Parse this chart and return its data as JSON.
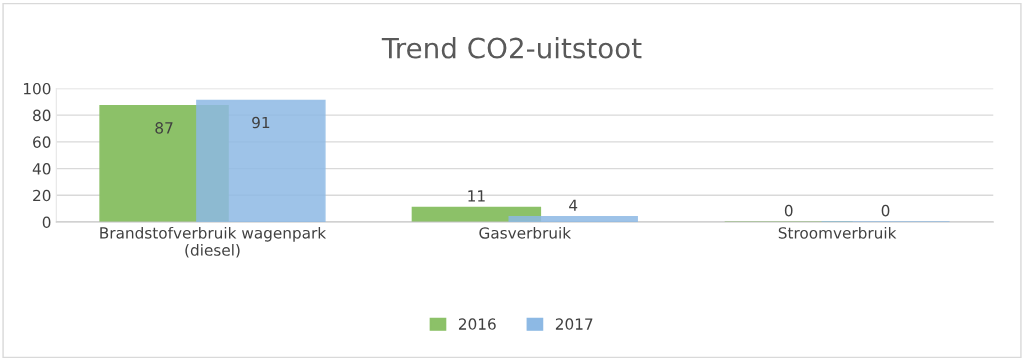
{
  "chart_data": {
    "type": "bar",
    "title": "Trend CO2-uitstoot",
    "categories": [
      "Brandstofverbruik wagenpark\n(diesel)",
      "Gasverbruik",
      "Stroomverbruik"
    ],
    "series": [
      {
        "name": "2016",
        "color": "#8cc168",
        "values": [
          87,
          11,
          0
        ]
      },
      {
        "name": "2017",
        "color": "#8db9e4",
        "values": [
          91,
          4,
          0
        ]
      }
    ],
    "ylim": [
      0,
      100
    ],
    "yticks": [
      0,
      20,
      40,
      60,
      80,
      100
    ],
    "grid": "y",
    "legend": "bottom",
    "data_labels": true
  }
}
